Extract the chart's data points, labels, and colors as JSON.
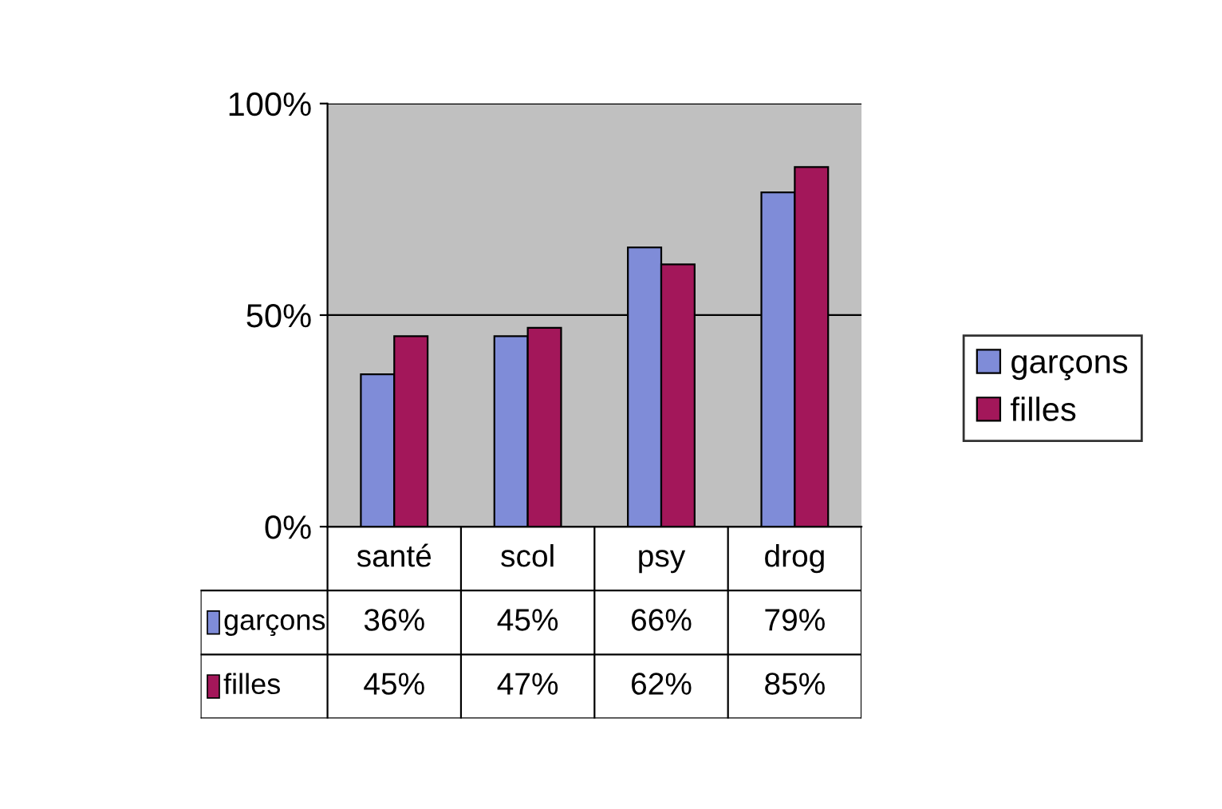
{
  "chart_data": {
    "type": "bar",
    "categories": [
      "santé",
      "scol",
      "psy",
      "drog"
    ],
    "series": [
      {
        "name": "garçons",
        "color": "#7f8cd8",
        "values": [
          36,
          45,
          66,
          79
        ],
        "value_labels": [
          "36%",
          "45%",
          "66%",
          "79%"
        ]
      },
      {
        "name": "filles",
        "color": "#a3175a",
        "values": [
          45,
          47,
          62,
          85
        ],
        "value_labels": [
          "45%",
          "47%",
          "62%",
          "85%"
        ]
      }
    ],
    "ylim": [
      0,
      100
    ],
    "yticks": [
      {
        "value": 0,
        "label": "0%"
      },
      {
        "value": 50,
        "label": "50%"
      },
      {
        "value": 100,
        "label": "100%"
      }
    ],
    "grid": "y",
    "legend": "right"
  }
}
